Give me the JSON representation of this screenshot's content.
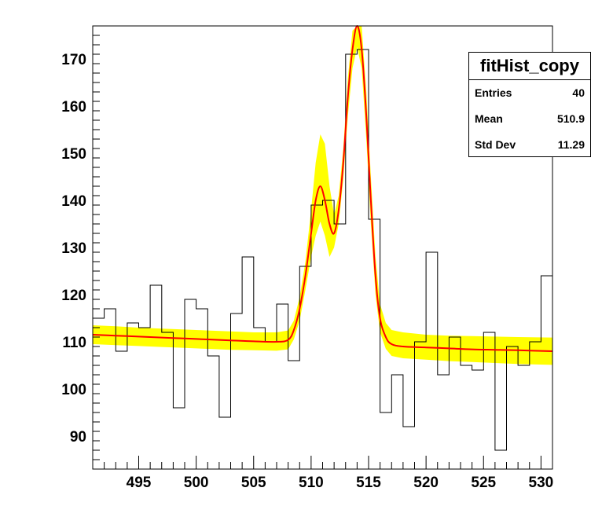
{
  "chart_data": {
    "type": "histogram",
    "title": "",
    "xlabel": "",
    "ylabel": "",
    "xlim": [
      491,
      531
    ],
    "ylim": [
      83,
      177
    ],
    "x_ticks": [
      495,
      500,
      505,
      510,
      515,
      520,
      525,
      530
    ],
    "y_ticks": [
      90,
      100,
      110,
      120,
      130,
      140,
      150,
      160,
      170
    ],
    "grid": false,
    "legend": "none",
    "histogram": {
      "bin_edges": [
        491,
        492,
        493,
        494,
        495,
        496,
        497,
        498,
        499,
        500,
        501,
        502,
        503,
        504,
        505,
        506,
        507,
        508,
        509,
        510,
        511,
        512,
        513,
        514,
        515,
        516,
        517,
        518,
        519,
        520,
        521,
        522,
        523,
        524,
        525,
        526,
        527,
        528,
        529,
        530,
        531
      ],
      "counts": [
        115,
        117,
        108,
        114,
        113,
        122,
        112,
        96,
        119,
        117,
        107,
        94,
        116,
        128,
        113,
        110,
        118,
        106,
        126,
        139,
        140,
        135,
        171,
        172,
        136,
        95,
        103,
        92,
        110,
        129,
        103,
        111,
        105,
        104,
        112,
        87,
        109,
        105,
        110,
        124
      ]
    },
    "fit_curve": {
      "name": "fit",
      "color": "#ff0000",
      "x": [
        491,
        493,
        495,
        497,
        499,
        501,
        503,
        505,
        507,
        508,
        508.5,
        509,
        509.5,
        510,
        510.4,
        510.8,
        511.2,
        511.6,
        512,
        512.4,
        512.8,
        513.2,
        513.6,
        514,
        514.4,
        514.8,
        515.2,
        515.6,
        516,
        516.5,
        517,
        518,
        520,
        522,
        524,
        526,
        528,
        531
      ],
      "y": [
        111.5,
        111.3,
        111.1,
        110.9,
        110.7,
        110.5,
        110.3,
        110.1,
        110.0,
        110.4,
        112.5,
        117,
        124,
        133,
        140,
        143,
        140,
        135,
        133,
        138,
        148,
        162,
        172,
        177,
        172,
        158,
        140,
        124,
        115,
        111,
        109.5,
        109,
        108.8,
        108.6,
        108.4,
        108.3,
        108.2,
        108.0
      ]
    },
    "confidence_band": {
      "color": "#ffff00",
      "x": [
        491,
        493,
        495,
        497,
        499,
        501,
        503,
        505,
        507,
        508,
        508.5,
        509,
        509.5,
        510,
        510.4,
        510.8,
        511.2,
        511.6,
        512,
        512.4,
        512.8,
        513.2,
        513.6,
        514,
        514.4,
        514.8,
        515.2,
        515.6,
        516,
        516.5,
        517,
        518,
        520,
        522,
        524,
        526,
        528,
        531
      ],
      "upper": [
        113.5,
        113.3,
        113.0,
        112.8,
        112.6,
        112.4,
        112.2,
        112.0,
        112.0,
        112.4,
        114.5,
        119.5,
        127,
        138,
        148,
        154,
        152,
        143,
        137,
        141,
        151,
        166,
        176,
        181,
        177,
        163,
        145,
        128,
        118,
        114,
        112.5,
        112,
        111.5,
        111.3,
        111.2,
        111.1,
        111.0,
        110.9
      ],
      "lower": [
        109.5,
        109.3,
        109.1,
        108.9,
        108.7,
        108.5,
        108.3,
        108.2,
        108.1,
        108.4,
        110.5,
        114.5,
        121,
        128,
        132.5,
        135.5,
        132.5,
        128,
        130,
        135,
        144.5,
        158,
        168,
        172.5,
        168,
        153,
        135,
        120,
        112,
        108.5,
        107,
        106.5,
        106.2,
        105.9,
        105.7,
        105.5,
        105.3,
        105.1
      ]
    }
  },
  "stats": {
    "title": "fitHist_copy",
    "rows": [
      {
        "label": "Entries",
        "value": "40"
      },
      {
        "label": "Mean",
        "value": "510.9"
      },
      {
        "label": "Std Dev",
        "value": "11.29"
      }
    ]
  }
}
